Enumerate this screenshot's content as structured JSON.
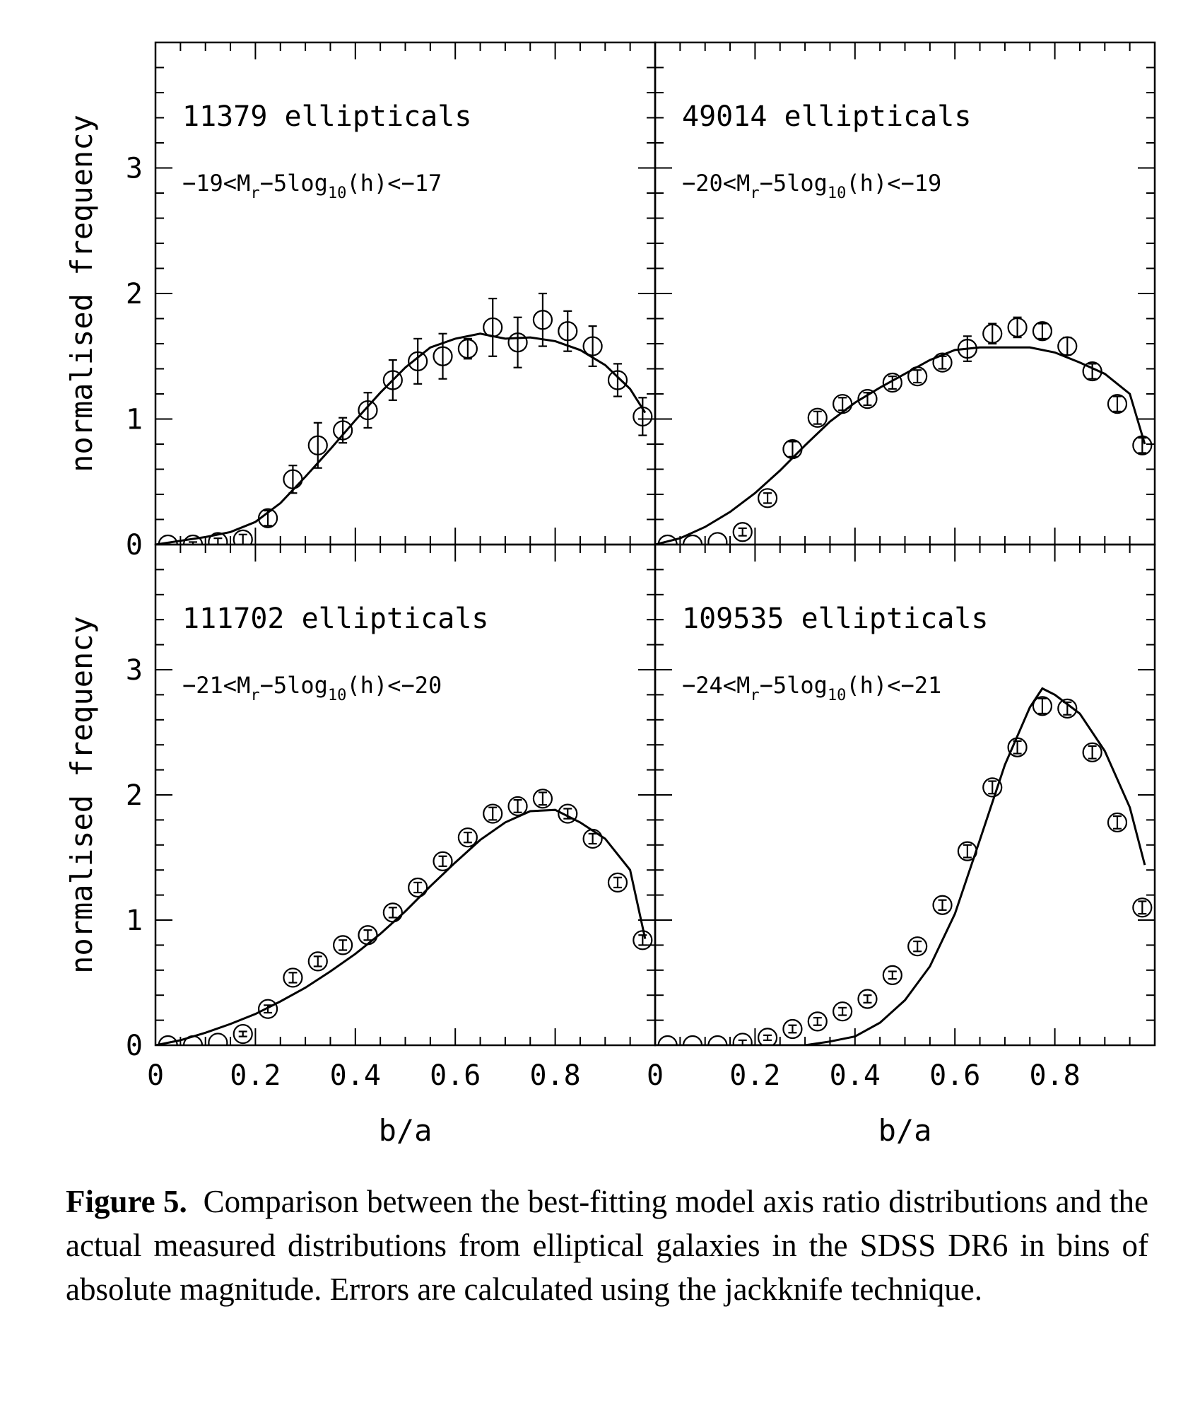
{
  "chart_data": {
    "type": "scatter",
    "layout": "2x2 panels, shared axes",
    "xlabel": "b/a",
    "ylabel": "normalised frequency",
    "xlim": [
      0,
      1
    ],
    "ylim": [
      0,
      4
    ],
    "xticks": [
      "0",
      "0.2",
      "0.4",
      "0.6",
      "0.8"
    ],
    "yticks": [
      "0",
      "1",
      "2",
      "3"
    ],
    "grid": false,
    "panels": [
      {
        "count_label": "11379 ellipticals",
        "mag_label": {
          "pre": "−19<M",
          "sub1": "r",
          "mid": "−5log",
          "sub2": "10",
          "post": "(h)<−17"
        },
        "points": {
          "x": [
            0.025,
            0.075,
            0.125,
            0.175,
            0.225,
            0.275,
            0.325,
            0.375,
            0.425,
            0.475,
            0.525,
            0.575,
            0.625,
            0.675,
            0.725,
            0.775,
            0.825,
            0.875,
            0.925,
            0.975
          ],
          "y": [
            0.0,
            0.0,
            0.02,
            0.04,
            0.21,
            0.52,
            0.79,
            0.91,
            1.07,
            1.31,
            1.46,
            1.5,
            1.56,
            1.73,
            1.61,
            1.79,
            1.7,
            1.58,
            1.31,
            1.02
          ],
          "err": [
            0.0,
            0.02,
            0.03,
            0.04,
            0.06,
            0.11,
            0.18,
            0.1,
            0.14,
            0.16,
            0.18,
            0.18,
            0.08,
            0.23,
            0.2,
            0.21,
            0.16,
            0.16,
            0.13,
            0.15
          ]
        },
        "model": {
          "x": [
            0.0,
            0.05,
            0.1,
            0.15,
            0.2,
            0.25,
            0.3,
            0.35,
            0.4,
            0.45,
            0.5,
            0.55,
            0.6,
            0.65,
            0.7,
            0.75,
            0.8,
            0.85,
            0.9,
            0.95,
            0.98
          ],
          "y": [
            0.0,
            0.03,
            0.06,
            0.1,
            0.18,
            0.33,
            0.54,
            0.76,
            0.99,
            1.21,
            1.41,
            1.57,
            1.64,
            1.68,
            1.64,
            1.65,
            1.62,
            1.55,
            1.43,
            1.24,
            1.05
          ]
        }
      },
      {
        "count_label": "49014 ellipticals",
        "mag_label": {
          "pre": "−20<M",
          "sub1": "r",
          "mid": "−5log",
          "sub2": "10",
          "post": "(h)<−19"
        },
        "points": {
          "x": [
            0.025,
            0.075,
            0.125,
            0.175,
            0.225,
            0.275,
            0.325,
            0.375,
            0.425,
            0.475,
            0.525,
            0.575,
            0.625,
            0.675,
            0.725,
            0.775,
            0.825,
            0.875,
            0.925,
            0.975
          ],
          "y": [
            0.0,
            0.0,
            0.02,
            0.1,
            0.37,
            0.76,
            1.01,
            1.12,
            1.16,
            1.29,
            1.34,
            1.45,
            1.56,
            1.68,
            1.73,
            1.7,
            1.58,
            1.38,
            1.12,
            0.79
          ],
          "err": [
            0.0,
            0.0,
            0.0,
            0.03,
            0.04,
            0.06,
            0.05,
            0.05,
            0.05,
            0.05,
            0.05,
            0.05,
            0.1,
            0.08,
            0.08,
            0.06,
            0.07,
            0.06,
            0.06,
            0.06
          ]
        },
        "model": {
          "x": [
            0.0,
            0.05,
            0.1,
            0.15,
            0.2,
            0.25,
            0.3,
            0.35,
            0.4,
            0.45,
            0.5,
            0.55,
            0.6,
            0.65,
            0.7,
            0.75,
            0.8,
            0.85,
            0.9,
            0.95,
            0.98
          ],
          "y": [
            0.0,
            0.05,
            0.14,
            0.26,
            0.41,
            0.59,
            0.79,
            0.98,
            1.13,
            1.25,
            1.36,
            1.47,
            1.55,
            1.57,
            1.57,
            1.57,
            1.53,
            1.45,
            1.36,
            1.2,
            0.8
          ]
        }
      },
      {
        "count_label": "111702 ellipticals",
        "mag_label": {
          "pre": "−21<M",
          "sub1": "r",
          "mid": "−5log",
          "sub2": "10",
          "post": "(h)<−20"
        },
        "points": {
          "x": [
            0.025,
            0.075,
            0.125,
            0.175,
            0.225,
            0.275,
            0.325,
            0.375,
            0.425,
            0.475,
            0.525,
            0.575,
            0.625,
            0.675,
            0.725,
            0.775,
            0.825,
            0.875,
            0.925,
            0.975
          ],
          "y": [
            0.0,
            0.0,
            0.02,
            0.09,
            0.29,
            0.54,
            0.67,
            0.8,
            0.88,
            1.06,
            1.26,
            1.47,
            1.66,
            1.85,
            1.91,
            1.97,
            1.85,
            1.65,
            1.3,
            0.84
          ],
          "err": [
            0.0,
            0.0,
            0.0,
            0.02,
            0.03,
            0.04,
            0.04,
            0.04,
            0.04,
            0.04,
            0.04,
            0.04,
            0.04,
            0.05,
            0.05,
            0.05,
            0.04,
            0.04,
            0.04,
            0.04
          ]
        },
        "model": {
          "x": [
            0.0,
            0.05,
            0.1,
            0.15,
            0.2,
            0.25,
            0.3,
            0.35,
            0.4,
            0.45,
            0.5,
            0.55,
            0.6,
            0.65,
            0.7,
            0.75,
            0.8,
            0.85,
            0.9,
            0.95,
            0.98
          ],
          "y": [
            0.0,
            0.04,
            0.1,
            0.17,
            0.25,
            0.35,
            0.46,
            0.59,
            0.73,
            0.89,
            1.07,
            1.27,
            1.46,
            1.64,
            1.78,
            1.87,
            1.88,
            1.78,
            1.65,
            1.4,
            0.85
          ]
        }
      },
      {
        "count_label": "109535 ellipticals",
        "mag_label": {
          "pre": "−24<M",
          "sub1": "r",
          "mid": "−5log",
          "sub2": "10",
          "post": "(h)<−21"
        },
        "points": {
          "x": [
            0.025,
            0.075,
            0.125,
            0.175,
            0.225,
            0.275,
            0.325,
            0.375,
            0.425,
            0.475,
            0.525,
            0.575,
            0.625,
            0.675,
            0.725,
            0.775,
            0.825,
            0.875,
            0.925,
            0.975
          ],
          "y": [
            0.0,
            0.0,
            0.0,
            0.02,
            0.06,
            0.13,
            0.19,
            0.27,
            0.37,
            0.56,
            0.79,
            1.12,
            1.55,
            2.06,
            2.38,
            2.71,
            2.69,
            2.34,
            1.78,
            1.1
          ],
          "err": [
            0.0,
            0.0,
            0.0,
            0.02,
            0.02,
            0.03,
            0.03,
            0.03,
            0.03,
            0.03,
            0.04,
            0.04,
            0.05,
            0.05,
            0.05,
            0.06,
            0.05,
            0.05,
            0.05,
            0.05
          ]
        },
        "model": {
          "x": [
            0.0,
            0.05,
            0.1,
            0.15,
            0.2,
            0.25,
            0.3,
            0.35,
            0.4,
            0.45,
            0.5,
            0.55,
            0.6,
            0.65,
            0.7,
            0.75,
            0.775,
            0.8,
            0.85,
            0.9,
            0.95,
            0.98
          ],
          "y": [
            0.0,
            0.0,
            0.0,
            0.0,
            0.0,
            0.0,
            0.0,
            0.03,
            0.07,
            0.18,
            0.36,
            0.63,
            1.05,
            1.64,
            2.24,
            2.7,
            2.85,
            2.8,
            2.65,
            2.35,
            1.9,
            1.44
          ]
        }
      }
    ]
  },
  "caption": {
    "label": "Figure 5.",
    "text": "Comparison between the best-fitting model axis ratio distributions and the actual measured distributions from elliptical galaxies in the SDSS DR6 in bins of absolute magnitude. Errors are calculated using the jackknife technique."
  }
}
